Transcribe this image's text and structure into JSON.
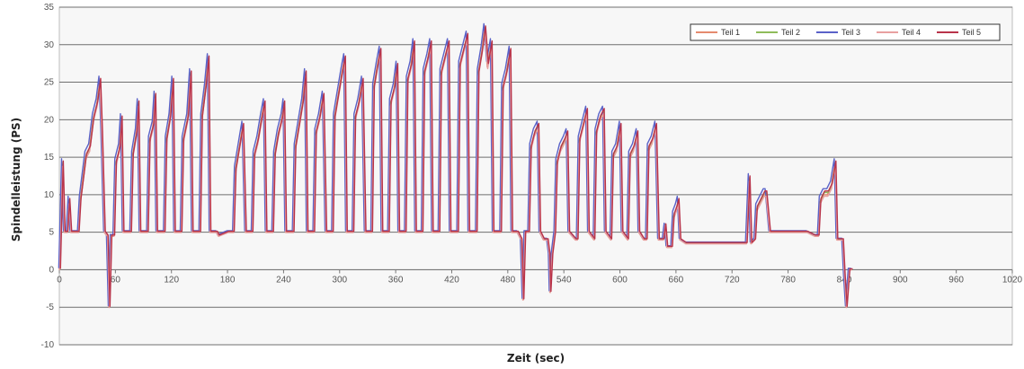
{
  "chart_data": {
    "type": "line",
    "title": "",
    "xlabel": "Zeit (sec)",
    "ylabel": "Spindelleistung (PS)",
    "xlim": [
      0,
      1020
    ],
    "ylim": [
      -10,
      35
    ],
    "x_ticks": [
      "0",
      "60",
      "120",
      "180",
      "240",
      "300",
      "360",
      "420",
      "480",
      "540",
      "600",
      "660",
      "720",
      "780",
      "840",
      "900",
      "960",
      "1020"
    ],
    "y_ticks": [
      "-10",
      "-5",
      "0",
      "5",
      "10",
      "15",
      "20",
      "25",
      "30",
      "35"
    ],
    "grid": "horizontal",
    "legend_position": "top-right",
    "series": [
      {
        "name": "Teil 1",
        "color": "#e58a6e",
        "x_offset": 0,
        "y_offset": 0
      },
      {
        "name": "Teil 2",
        "color": "#8fbc5a",
        "x_offset": 0.8,
        "y_offset": 0.3
      },
      {
        "name": "Teil 3",
        "color": "#5a62c8",
        "x_offset": -0.6,
        "y_offset": 0.8
      },
      {
        "name": "Teil 4",
        "color": "#e8a0a0",
        "x_offset": 0.5,
        "y_offset": -0.2
      },
      {
        "name": "Teil 5",
        "color": "#b8334a",
        "x_offset": 1.2,
        "y_offset": 0.5
      }
    ],
    "profile": [
      [
        0,
        0
      ],
      [
        3,
        14
      ],
      [
        5,
        5
      ],
      [
        8,
        5
      ],
      [
        10,
        9
      ],
      [
        12,
        5
      ],
      [
        18,
        5
      ],
      [
        20,
        5
      ],
      [
        22,
        9
      ],
      [
        25,
        12
      ],
      [
        28,
        15
      ],
      [
        32,
        16
      ],
      [
        36,
        20
      ],
      [
        40,
        22
      ],
      [
        43,
        25
      ],
      [
        45,
        18
      ],
      [
        48,
        5
      ],
      [
        51,
        4.5
      ],
      [
        53,
        -5
      ],
      [
        55,
        4.5
      ],
      [
        58,
        4.5
      ],
      [
        60,
        14
      ],
      [
        64,
        16
      ],
      [
        66,
        20
      ],
      [
        68,
        5
      ],
      [
        76,
        5
      ],
      [
        78,
        15
      ],
      [
        82,
        18
      ],
      [
        84,
        22
      ],
      [
        86,
        5
      ],
      [
        94,
        5
      ],
      [
        96,
        17
      ],
      [
        100,
        19
      ],
      [
        102,
        23
      ],
      [
        104,
        5
      ],
      [
        112,
        5
      ],
      [
        114,
        17
      ],
      [
        118,
        20
      ],
      [
        121,
        25
      ],
      [
        123,
        5
      ],
      [
        130,
        5
      ],
      [
        132,
        17
      ],
      [
        137,
        20
      ],
      [
        140,
        26
      ],
      [
        142,
        5
      ],
      [
        150,
        5
      ],
      [
        152,
        20
      ],
      [
        156,
        24
      ],
      [
        159,
        28
      ],
      [
        161,
        5
      ],
      [
        168,
        5
      ],
      [
        170,
        4.5
      ],
      [
        180,
        5
      ],
      [
        186,
        5
      ],
      [
        188,
        13
      ],
      [
        192,
        16
      ],
      [
        196,
        19
      ],
      [
        199,
        5
      ],
      [
        206,
        5
      ],
      [
        208,
        15
      ],
      [
        212,
        17
      ],
      [
        216,
        20
      ],
      [
        219,
        22
      ],
      [
        221,
        5
      ],
      [
        228,
        5
      ],
      [
        230,
        15
      ],
      [
        234,
        18
      ],
      [
        238,
        20
      ],
      [
        240,
        22
      ],
      [
        242,
        5
      ],
      [
        250,
        5
      ],
      [
        252,
        16
      ],
      [
        256,
        19
      ],
      [
        260,
        22
      ],
      [
        263,
        26
      ],
      [
        265,
        5
      ],
      [
        272,
        5
      ],
      [
        274,
        18
      ],
      [
        278,
        20
      ],
      [
        282,
        23
      ],
      [
        285,
        5
      ],
      [
        292,
        5
      ],
      [
        294,
        20
      ],
      [
        298,
        23
      ],
      [
        302,
        26
      ],
      [
        305,
        28
      ],
      [
        307,
        5
      ],
      [
        314,
        5
      ],
      [
        316,
        20
      ],
      [
        320,
        22
      ],
      [
        324,
        25
      ],
      [
        327,
        5
      ],
      [
        334,
        5
      ],
      [
        336,
        24
      ],
      [
        340,
        27
      ],
      [
        343,
        29
      ],
      [
        345,
        5
      ],
      [
        352,
        5
      ],
      [
        354,
        22
      ],
      [
        358,
        24
      ],
      [
        361,
        27
      ],
      [
        363,
        5
      ],
      [
        370,
        5
      ],
      [
        372,
        25
      ],
      [
        376,
        27
      ],
      [
        379,
        30
      ],
      [
        381,
        5
      ],
      [
        388,
        5
      ],
      [
        390,
        26
      ],
      [
        394,
        28
      ],
      [
        397,
        30
      ],
      [
        399,
        5
      ],
      [
        406,
        5
      ],
      [
        408,
        26
      ],
      [
        412,
        28
      ],
      [
        416,
        30
      ],
      [
        418,
        5
      ],
      [
        426,
        5
      ],
      [
        428,
        27
      ],
      [
        432,
        29
      ],
      [
        436,
        31
      ],
      [
        438,
        5
      ],
      [
        446,
        5
      ],
      [
        448,
        26
      ],
      [
        452,
        29
      ],
      [
        455,
        32
      ],
      [
        458,
        27
      ],
      [
        462,
        30
      ],
      [
        464,
        5
      ],
      [
        472,
        5
      ],
      [
        474,
        24
      ],
      [
        478,
        26
      ],
      [
        482,
        29
      ],
      [
        484,
        5
      ],
      [
        490,
        5
      ],
      [
        494,
        4
      ],
      [
        496,
        -4
      ],
      [
        498,
        5
      ],
      [
        502,
        5
      ],
      [
        504,
        16
      ],
      [
        508,
        18
      ],
      [
        512,
        19
      ],
      [
        514,
        5
      ],
      [
        518,
        4
      ],
      [
        522,
        4
      ],
      [
        524,
        2
      ],
      [
        525,
        -3
      ],
      [
        527,
        2
      ],
      [
        530,
        5
      ],
      [
        532,
        14
      ],
      [
        536,
        16
      ],
      [
        540,
        17
      ],
      [
        543,
        18
      ],
      [
        545,
        5
      ],
      [
        552,
        4
      ],
      [
        554,
        4
      ],
      [
        556,
        17
      ],
      [
        560,
        19
      ],
      [
        564,
        21
      ],
      [
        566,
        5
      ],
      [
        572,
        4
      ],
      [
        574,
        18
      ],
      [
        578,
        20
      ],
      [
        582,
        21
      ],
      [
        584,
        5
      ],
      [
        590,
        4
      ],
      [
        592,
        15
      ],
      [
        596,
        16
      ],
      [
        600,
        19
      ],
      [
        602,
        5
      ],
      [
        608,
        4
      ],
      [
        610,
        15
      ],
      [
        614,
        16
      ],
      [
        618,
        18
      ],
      [
        620,
        5
      ],
      [
        625,
        4
      ],
      [
        628,
        4
      ],
      [
        630,
        16
      ],
      [
        634,
        17
      ],
      [
        638,
        19
      ],
      [
        641,
        4
      ],
      [
        646,
        4
      ],
      [
        648,
        6
      ],
      [
        650,
        3
      ],
      [
        655,
        3
      ],
      [
        657,
        7
      ],
      [
        660,
        8
      ],
      [
        662,
        9
      ],
      [
        664,
        4
      ],
      [
        670,
        3.5
      ],
      [
        700,
        3.5
      ],
      [
        735,
        3.5
      ],
      [
        738,
        12
      ],
      [
        740,
        3.5
      ],
      [
        744,
        4
      ],
      [
        746,
        8
      ],
      [
        750,
        9
      ],
      [
        754,
        10
      ],
      [
        756,
        10
      ],
      [
        760,
        5
      ],
      [
        800,
        5
      ],
      [
        808,
        4.5
      ],
      [
        812,
        4.5
      ],
      [
        814,
        9
      ],
      [
        818,
        10
      ],
      [
        822,
        10
      ],
      [
        826,
        11
      ],
      [
        830,
        14
      ],
      [
        832,
        4
      ],
      [
        838,
        4
      ],
      [
        840,
        -1
      ],
      [
        842,
        -5
      ],
      [
        845,
        0
      ],
      [
        848,
        0
      ]
    ]
  }
}
